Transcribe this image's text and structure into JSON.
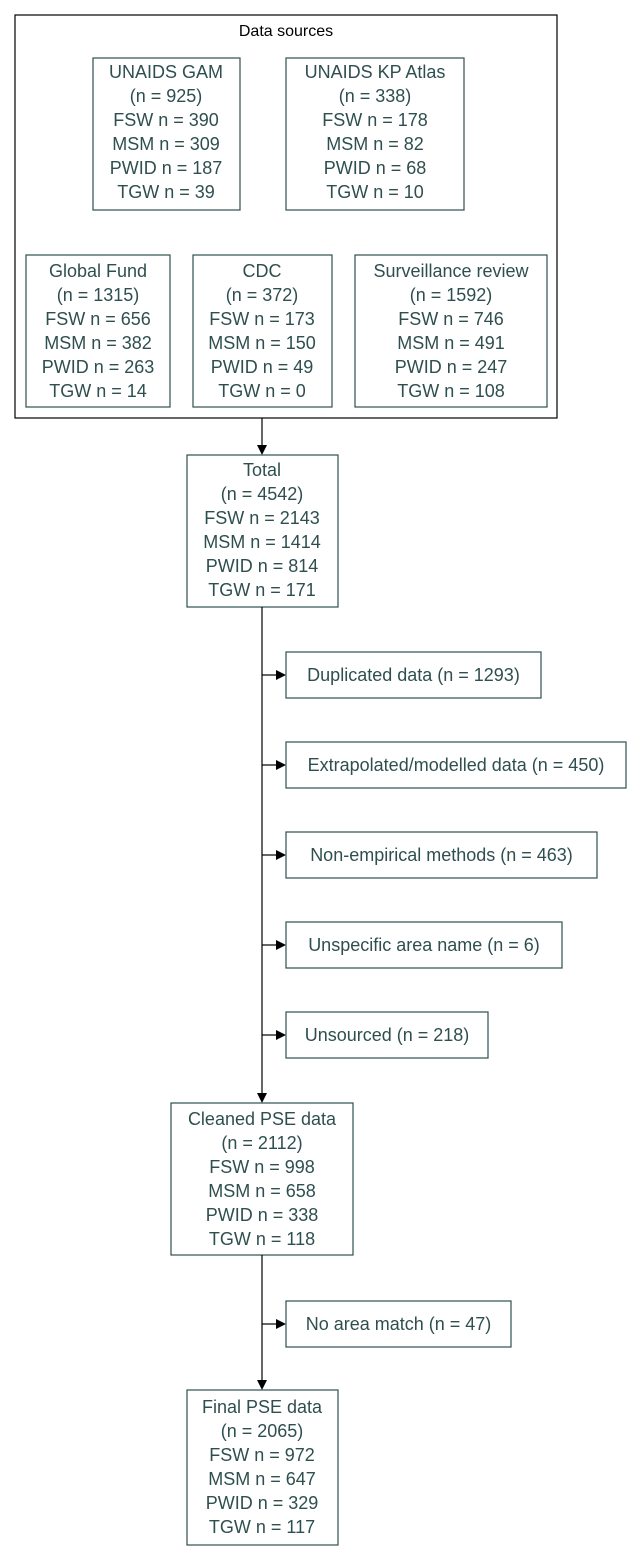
{
  "group_title": "Data sources",
  "sources": [
    {
      "title": "UNAIDS GAM",
      "total": "(n = 925)",
      "fsw": "FSW n = 390",
      "msm": "MSM n = 309",
      "pwid": "PWID n = 187",
      "tgw": "TGW n = 39"
    },
    {
      "title": "UNAIDS KP Atlas",
      "total": "(n = 338)",
      "fsw": "FSW n = 178",
      "msm": "MSM n = 82",
      "pwid": "PWID n = 68",
      "tgw": "TGW n = 10"
    },
    {
      "title": "Global Fund",
      "total": "(n = 1315)",
      "fsw": "FSW n = 656",
      "msm": "MSM n = 382",
      "pwid": "PWID n = 263",
      "tgw": "TGW n = 14"
    },
    {
      "title": "CDC",
      "total": "(n = 372)",
      "fsw": "FSW n = 173",
      "msm": "MSM n = 150",
      "pwid": "PWID n = 49",
      "tgw": "TGW n = 0"
    },
    {
      "title": "Surveillance review",
      "total": "(n = 1592)",
      "fsw": "FSW n = 746",
      "msm": "MSM n = 491",
      "pwid": "PWID n = 247",
      "tgw": "TGW n = 108"
    }
  ],
  "total_box": {
    "title": "Total",
    "total": "(n = 4542)",
    "fsw": "FSW n = 2143",
    "msm": "MSM n = 1414",
    "pwid": "PWID n = 814",
    "tgw": "TGW n = 171"
  },
  "exclusions": [
    {
      "label": "Duplicated data (n = 1293)"
    },
    {
      "label": "Extrapolated/modelled data (n = 450)"
    },
    {
      "label": "Non-empirical methods (n = 463)"
    },
    {
      "label": "Unspecific area name (n = 6)"
    },
    {
      "label": "Unsourced (n = 218)"
    }
  ],
  "cleaned_box": {
    "title": "Cleaned PSE data",
    "total": "(n = 2112)",
    "fsw": "FSW n = 998",
    "msm": "MSM n = 658",
    "pwid": "PWID n = 338",
    "tgw": "TGW n = 118"
  },
  "exclusion_final": {
    "label": "No area match (n = 47)"
  },
  "final_box": {
    "title": "Final PSE data",
    "total": "(n = 2065)",
    "fsw": "FSW n = 972",
    "msm": "MSM n = 647",
    "pwid": "PWID n = 329",
    "tgw": "TGW n = 117"
  }
}
